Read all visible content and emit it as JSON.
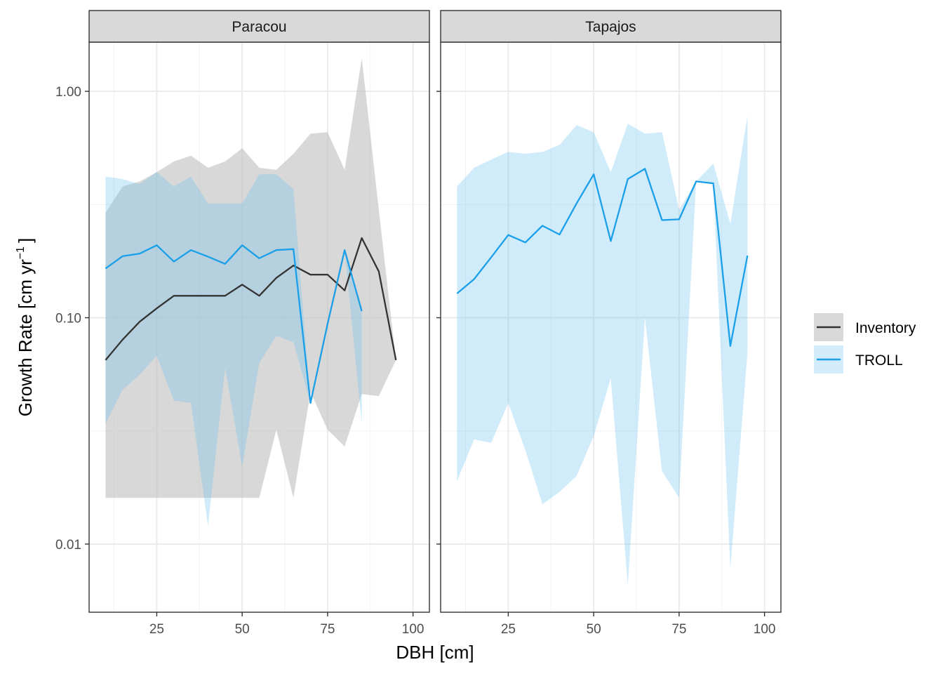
{
  "chart_data": {
    "type": "line",
    "xlabel": "DBH [cm]",
    "ylabel": {
      "main": "Growth Rate [cm yr",
      "sup": "−1",
      "close": "]"
    },
    "x_ticks": [
      25,
      50,
      75,
      100
    ],
    "x_ticklabels": [
      "25",
      "50",
      "75",
      "100"
    ],
    "xlim": [
      5.2,
      104.8
    ],
    "y_scale": "log10",
    "y_ticks": [
      0.01,
      0.1,
      1
    ],
    "y_ticklabels": [
      "0.01",
      "0.10",
      "1.00"
    ],
    "ylim": [
      0.005,
      1.65
    ],
    "grid": true,
    "legend": {
      "position": "right",
      "entries": [
        {
          "key": "inventory",
          "label": "Inventory",
          "line_color": "#333333",
          "fill_color": "#d9d9d9"
        },
        {
          "key": "troll",
          "label": "TROLL",
          "line_color": "#1a9fe8",
          "fill_color": "#d2ecfb"
        }
      ]
    },
    "panels": [
      {
        "title": "Paracou",
        "series": [
          {
            "key": "inventory",
            "line_color": "#333333",
            "fill_color": "rgba(190,190,190,0.6)",
            "x": [
              10,
              15,
              20,
              25,
              30,
              35,
              40,
              45,
              50,
              55,
              60,
              65,
              70,
              75,
              80,
              85,
              90,
              95
            ],
            "y": [
              0.065,
              0.08,
              0.096,
              0.11,
              0.125,
              0.125,
              0.125,
              0.125,
              0.14,
              0.125,
              0.15,
              0.17,
              0.155,
              0.155,
              0.132,
              0.225,
              0.16,
              0.065
            ],
            "lower": [
              0.016,
              0.016,
              0.016,
              0.016,
              0.016,
              0.016,
              0.016,
              0.016,
              0.016,
              0.016,
              0.032,
              0.016,
              0.047,
              0.032,
              0.027,
              0.046,
              0.045,
              0.065
            ],
            "upper": [
              0.29,
              0.38,
              0.4,
              0.44,
              0.49,
              0.52,
              0.46,
              0.49,
              0.56,
              0.46,
              0.45,
              0.53,
              0.65,
              0.66,
              0.45,
              1.4,
              0.3,
              0.065
            ]
          },
          {
            "key": "troll",
            "line_color": "#1a9fe8",
            "fill_color": "rgba(110,195,240,0.32)",
            "x": [
              10,
              15,
              20,
              25,
              30,
              35,
              40,
              45,
              50,
              55,
              60,
              65,
              70,
              75,
              80,
              85
            ],
            "y": [
              0.165,
              0.187,
              0.192,
              0.209,
              0.177,
              0.199,
              0.186,
              0.173,
              0.209,
              0.183,
              0.199,
              0.201,
              0.042,
              0.094,
              0.199,
              0.107
            ],
            "lower": [
              0.034,
              0.048,
              0.056,
              0.068,
              0.043,
              0.042,
              0.012,
              0.06,
              0.022,
              0.063,
              0.083,
              0.078,
              0.042,
              0.094,
              0.199,
              0.034
            ],
            "upper": [
              0.42,
              0.41,
              0.39,
              0.44,
              0.38,
              0.42,
              0.32,
              0.32,
              0.32,
              0.43,
              0.43,
              0.37,
              0.042,
              0.094,
              0.199,
              0.107
            ]
          }
        ]
      },
      {
        "title": "Tapajos",
        "series": [
          {
            "key": "troll",
            "line_color": "#1a9fe8",
            "fill_color": "rgba(110,195,240,0.32)",
            "x": [
              10,
              15,
              20,
              25,
              30,
              35,
              40,
              45,
              50,
              55,
              60,
              65,
              70,
              75,
              80,
              85,
              90,
              95
            ],
            "y": [
              0.128,
              0.148,
              0.185,
              0.232,
              0.215,
              0.255,
              0.233,
              0.32,
              0.43,
              0.218,
              0.41,
              0.455,
              0.27,
              0.272,
              0.4,
              0.392,
              0.075,
              0.188
            ],
            "lower": [
              0.019,
              0.029,
              0.028,
              0.042,
              0.026,
              0.015,
              0.017,
              0.02,
              0.03,
              0.054,
              0.0066,
              0.1,
              0.021,
              0.016,
              0.4,
              0.392,
              0.0078,
              0.07
            ],
            "upper": [
              0.38,
              0.46,
              0.5,
              0.54,
              0.53,
              0.54,
              0.58,
              0.71,
              0.66,
              0.44,
              0.72,
              0.65,
              0.66,
              0.3,
              0.4,
              0.48,
              0.26,
              0.78
            ]
          }
        ]
      }
    ]
  }
}
